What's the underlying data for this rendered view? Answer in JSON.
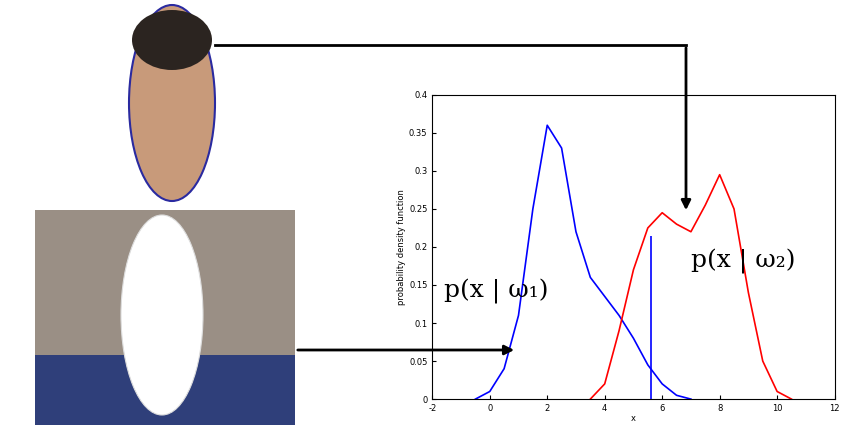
{
  "chart_data": {
    "type": "line",
    "xlabel": "x",
    "ylabel": "probability density function",
    "xlim": [
      -2,
      12
    ],
    "xticks": [
      -2,
      0,
      2,
      4,
      6,
      8,
      10,
      12
    ],
    "ylim": [
      0,
      0.4
    ],
    "yticks": [
      0,
      0.05,
      0.1,
      0.15,
      0.2,
      0.25,
      0.3,
      0.35,
      0.4
    ],
    "series": [
      {
        "name": "p(x | ω₁)",
        "color": "#0000ff",
        "x": [
          -0.5,
          0,
          0.5,
          1,
          1.5,
          2,
          2.5,
          3,
          3.5,
          4,
          4.5,
          5,
          5.5,
          6,
          6.5,
          7
        ],
        "values": [
          0,
          0.01,
          0.04,
          0.11,
          0.25,
          0.36,
          0.33,
          0.22,
          0.16,
          0.135,
          0.11,
          0.08,
          0.045,
          0.02,
          0.005,
          0
        ]
      },
      {
        "name": "p(x | ω₂)",
        "color": "#ff0000",
        "x": [
          3.5,
          4,
          4.5,
          5,
          5.5,
          6,
          6.5,
          7,
          7.5,
          8,
          8.5,
          9,
          9.5,
          10,
          10.5
        ],
        "values": [
          0,
          0.02,
          0.09,
          0.17,
          0.225,
          0.245,
          0.23,
          0.22,
          0.255,
          0.295,
          0.25,
          0.14,
          0.05,
          0.01,
          0
        ]
      }
    ],
    "vlines": [
      {
        "x": 5.6,
        "ymin": 0,
        "ymax": 0.215,
        "color": "#0000ff"
      }
    ]
  }
}
